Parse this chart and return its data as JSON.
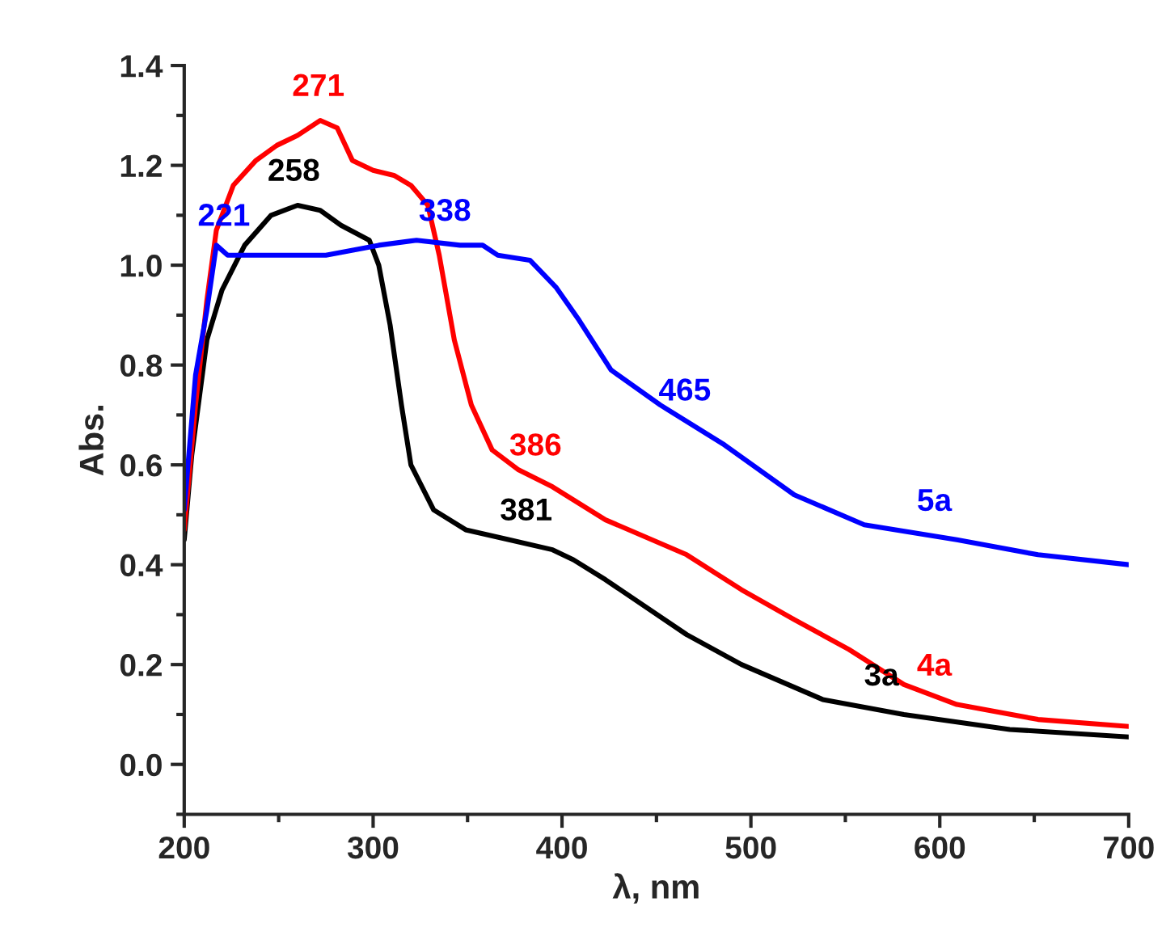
{
  "chart_data": {
    "type": "line",
    "xlabel": "λ, nm",
    "ylabel": "Abs.",
    "xlim": [
      200,
      700
    ],
    "ylim": [
      -0.1,
      1.4
    ],
    "xticks": [
      200,
      300,
      400,
      500,
      600,
      700
    ],
    "yticks": [
      {
        "value": 0.0,
        "label": "0.0"
      },
      {
        "value": 0.2,
        "label": "0.2"
      },
      {
        "value": 0.4,
        "label": "0.4"
      },
      {
        "value": 0.6,
        "label": "0.6"
      },
      {
        "value": 0.8,
        "label": "0.8"
      },
      {
        "value": 1.0,
        "label": "1.0"
      },
      {
        "value": 1.2,
        "label": "1.2"
      },
      {
        "value": 1.4,
        "label": "1.4"
      }
    ],
    "grid": false,
    "legend": false,
    "marker": "none",
    "line_style": "solid",
    "series": [
      {
        "name": "3a",
        "color": "#000000",
        "x": [
          200,
          204,
          212,
          220,
          232,
          246,
          260,
          272,
          283,
          298,
          303,
          309,
          315,
          320,
          332,
          349,
          372,
          395,
          406,
          423,
          466,
          495,
          538,
          581,
          637,
          700
        ],
        "values": [
          0.45,
          0.62,
          0.85,
          0.95,
          1.04,
          1.1,
          1.12,
          1.11,
          1.08,
          1.05,
          1.0,
          0.88,
          0.72,
          0.6,
          0.51,
          0.47,
          0.45,
          0.43,
          0.41,
          0.37,
          0.26,
          0.2,
          0.13,
          0.1,
          0.07,
          0.055
        ]
      },
      {
        "name": "4a",
        "color": "#ff0000",
        "x": [
          200,
          206,
          212,
          217,
          226,
          238,
          249,
          260,
          272,
          281,
          289,
          300,
          311,
          320,
          329,
          335,
          343,
          352,
          363,
          377,
          395,
          423,
          466,
          495,
          523,
          552,
          581,
          609,
          652,
          700
        ],
        "values": [
          0.47,
          0.72,
          0.93,
          1.07,
          1.16,
          1.21,
          1.24,
          1.26,
          1.29,
          1.275,
          1.21,
          1.19,
          1.18,
          1.16,
          1.12,
          1.02,
          0.85,
          0.72,
          0.63,
          0.59,
          0.556,
          0.49,
          0.42,
          0.35,
          0.29,
          0.23,
          0.16,
          0.12,
          0.09,
          0.076
        ]
      },
      {
        "name": "5a",
        "color": "#0000ff",
        "x": [
          200,
          206,
          212,
          217,
          223,
          246,
          275,
          303,
          323,
          346,
          358,
          366,
          383,
          397,
          409,
          426,
          452,
          486,
          523,
          560,
          609,
          652,
          700
        ],
        "values": [
          0.51,
          0.78,
          0.91,
          1.04,
          1.02,
          1.02,
          1.02,
          1.04,
          1.05,
          1.04,
          1.04,
          1.02,
          1.01,
          0.955,
          0.89,
          0.79,
          0.72,
          0.64,
          0.54,
          0.48,
          0.45,
          0.42,
          0.4
        ]
      }
    ],
    "annotations": [
      {
        "text": "258",
        "x": 258,
        "y": 1.12
      },
      {
        "text": "271",
        "x": 271,
        "y": 1.29
      },
      {
        "text": "221",
        "x": 221,
        "y": 1.03
      },
      {
        "text": "338",
        "x": 338,
        "y": 1.04
      },
      {
        "text": "386",
        "x": 386,
        "y": 0.57
      },
      {
        "text": "381",
        "x": 381,
        "y": 0.44
      },
      {
        "text": "465",
        "x": 465,
        "y": 0.68
      }
    ]
  }
}
